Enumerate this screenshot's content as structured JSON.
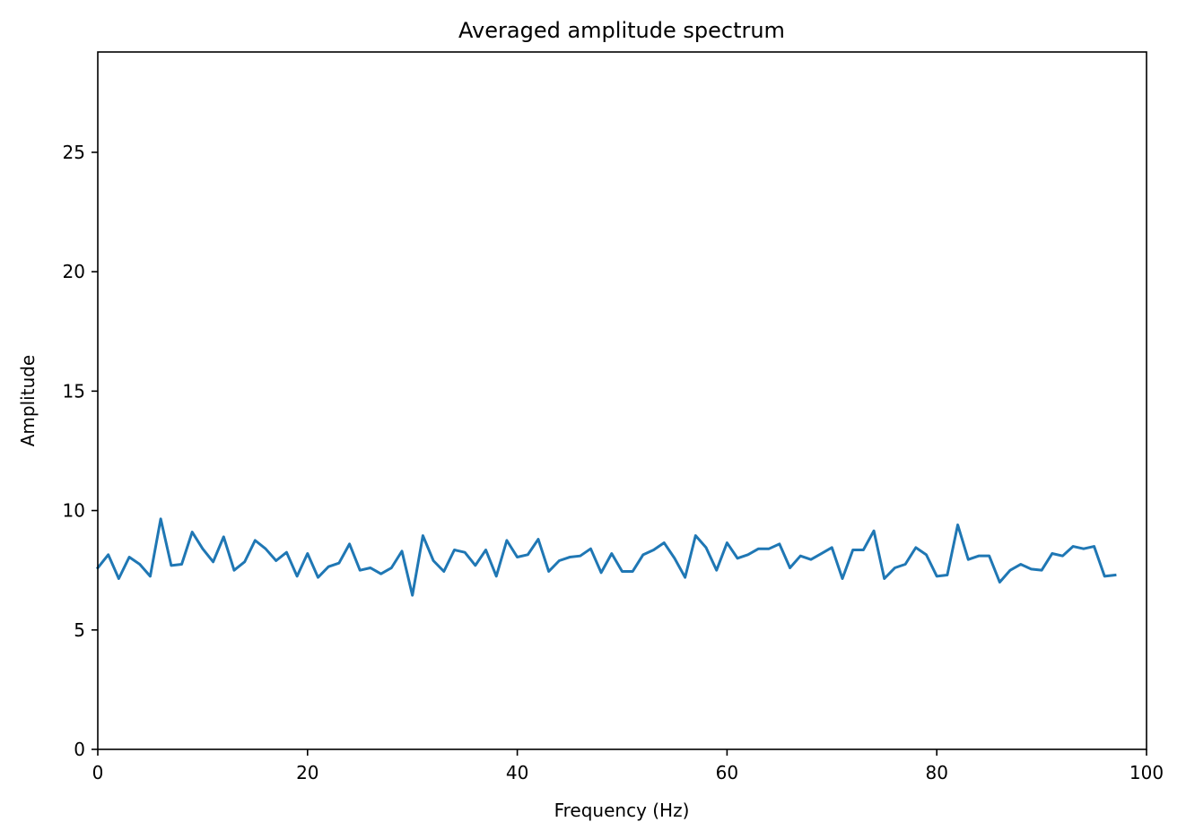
{
  "chart_data": {
    "type": "line",
    "title": "Averaged amplitude spectrum",
    "xlabel": "Frequency (Hz)",
    "ylabel": "Amplitude",
    "xlim": [
      0,
      100
    ],
    "ylim": [
      0,
      29.2
    ],
    "xticks": [
      0,
      20,
      40,
      60,
      80,
      100
    ],
    "yticks": [
      0,
      5,
      10,
      15,
      20,
      25
    ],
    "grid": false,
    "series": [
      {
        "color": "#1f77b4",
        "x": [
          0,
          1,
          2,
          3,
          4,
          5,
          6,
          7,
          8,
          9,
          10,
          11,
          12,
          13,
          14,
          15,
          16,
          17,
          18,
          19,
          20,
          21,
          22,
          23,
          24,
          25,
          26,
          27,
          28,
          29,
          30,
          31,
          32,
          33,
          34,
          35,
          36,
          37,
          38,
          39,
          40,
          41,
          42,
          43,
          44,
          45,
          46,
          47,
          48,
          49,
          50,
          51,
          52,
          53,
          54,
          55,
          56,
          57,
          58,
          59,
          60,
          61,
          62,
          63,
          64,
          65,
          66,
          67,
          68,
          69,
          70,
          71,
          72,
          73,
          74,
          75,
          76,
          77,
          78,
          79,
          80,
          81,
          82,
          83,
          84,
          85,
          86,
          87,
          88,
          89,
          90,
          91,
          92,
          93,
          94,
          95,
          96,
          97
        ],
        "y": [
          7.6,
          8.15,
          7.15,
          8.05,
          7.75,
          7.25,
          9.65,
          7.7,
          7.75,
          9.1,
          8.4,
          7.85,
          8.9,
          7.5,
          7.85,
          8.75,
          8.4,
          7.9,
          8.25,
          7.25,
          8.2,
          7.2,
          7.65,
          7.8,
          8.6,
          7.5,
          7.6,
          7.35,
          7.6,
          8.3,
          6.45,
          8.95,
          7.9,
          7.45,
          8.35,
          8.25,
          7.7,
          8.35,
          7.25,
          8.75,
          8.05,
          8.15,
          8.8,
          7.45,
          7.9,
          8.05,
          8.1,
          8.4,
          7.4,
          8.2,
          7.45,
          7.45,
          8.15,
          8.35,
          8.65,
          8.0,
          7.2,
          8.95,
          8.45,
          7.5,
          8.65,
          8.0,
          8.15,
          8.4,
          8.4,
          8.6,
          7.6,
          8.1,
          7.95,
          8.2,
          8.45,
          7.15,
          8.35,
          8.35,
          9.15,
          7.15,
          7.6,
          7.75,
          8.45,
          8.15,
          7.25,
          7.3,
          9.4,
          7.95,
          8.1,
          8.1,
          7.0,
          7.5,
          7.75,
          7.55,
          7.5,
          8.2,
          8.1,
          8.5,
          8.4,
          8.5,
          7.25,
          7.3
        ]
      }
    ]
  }
}
